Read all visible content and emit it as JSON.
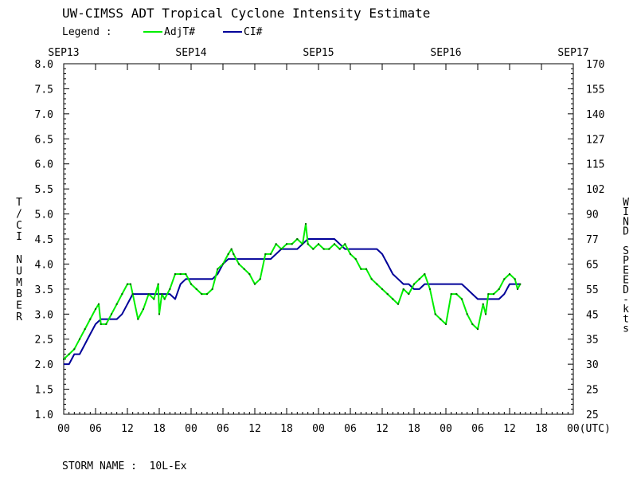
{
  "chart_data": {
    "type": "line",
    "title": "UW-CIMSS ADT Tropical Cyclone Intensity Estimate",
    "legend": {
      "label": "Legend :",
      "entries": [
        {
          "name": "AdjT#",
          "color": "#00ee00"
        },
        {
          "name": "CI#",
          "color": "#000099"
        }
      ]
    },
    "ylabel_left": "T/CI NUMBER",
    "ylabel_right": "WIND SPEED-kts",
    "ylim": [
      1.0,
      8.0
    ],
    "left_ticks": [
      "8.0",
      "7.5",
      "7.0",
      "6.5",
      "6.0",
      "5.5",
      "5.0",
      "4.5",
      "4.0",
      "3.5",
      "3.0",
      "2.5",
      "2.0",
      "1.5",
      "1.0"
    ],
    "right_ticks": [
      "170",
      "155",
      "140",
      "127",
      "115",
      "102",
      "90",
      "77",
      "65",
      "55",
      "45",
      "35",
      "30",
      "25",
      "25"
    ],
    "top_dates": [
      "SEP13",
      "SEP14",
      "SEP15",
      "SEP16",
      "SEP17"
    ],
    "bottom_hours": [
      "00",
      "06",
      "12",
      "18",
      "00",
      "06",
      "12",
      "18",
      "00",
      "06",
      "12",
      "18",
      "00",
      "06",
      "12",
      "18",
      "00(UTC)"
    ],
    "xlim_hours": [
      0,
      96
    ],
    "series": [
      {
        "name": "AdjT#",
        "color": "#00ee00",
        "points": [
          [
            0,
            2.1
          ],
          [
            1,
            2.2
          ],
          [
            2,
            2.3
          ],
          [
            3,
            2.5
          ],
          [
            4,
            2.7
          ],
          [
            5,
            2.9
          ],
          [
            6,
            3.1
          ],
          [
            6.6,
            3.2
          ],
          [
            7,
            2.8
          ],
          [
            8,
            2.8
          ],
          [
            9,
            3.0
          ],
          [
            10,
            3.2
          ],
          [
            11,
            3.4
          ],
          [
            12,
            3.6
          ],
          [
            12.6,
            3.6
          ],
          [
            13,
            3.4
          ],
          [
            14,
            2.9
          ],
          [
            15,
            3.1
          ],
          [
            16,
            3.4
          ],
          [
            17,
            3.3
          ],
          [
            17.8,
            3.6
          ],
          [
            18,
            3.0
          ],
          [
            18.5,
            3.4
          ],
          [
            19,
            3.3
          ],
          [
            20,
            3.5
          ],
          [
            21,
            3.8
          ],
          [
            22,
            3.8
          ],
          [
            23,
            3.8
          ],
          [
            24,
            3.6
          ],
          [
            25,
            3.5
          ],
          [
            26,
            3.4
          ],
          [
            27,
            3.4
          ],
          [
            28,
            3.5
          ],
          [
            29,
            3.9
          ],
          [
            30,
            4.0
          ],
          [
            31,
            4.2
          ],
          [
            31.6,
            4.3
          ],
          [
            32,
            4.2
          ],
          [
            33,
            4.0
          ],
          [
            34,
            3.9
          ],
          [
            35,
            3.8
          ],
          [
            36,
            3.6
          ],
          [
            37,
            3.7
          ],
          [
            38,
            4.2
          ],
          [
            39,
            4.2
          ],
          [
            40,
            4.4
          ],
          [
            41,
            4.3
          ],
          [
            42,
            4.4
          ],
          [
            43,
            4.4
          ],
          [
            44,
            4.5
          ],
          [
            45,
            4.4
          ],
          [
            45.6,
            4.8
          ],
          [
            46,
            4.4
          ],
          [
            47,
            4.3
          ],
          [
            48,
            4.4
          ],
          [
            49,
            4.3
          ],
          [
            50,
            4.3
          ],
          [
            51,
            4.4
          ],
          [
            52,
            4.3
          ],
          [
            53,
            4.4
          ],
          [
            54,
            4.2
          ],
          [
            55,
            4.1
          ],
          [
            56,
            3.9
          ],
          [
            57,
            3.9
          ],
          [
            58,
            3.7
          ],
          [
            59,
            3.6
          ],
          [
            60,
            3.5
          ],
          [
            61,
            3.4
          ],
          [
            62,
            3.3
          ],
          [
            63,
            3.2
          ],
          [
            64,
            3.5
          ],
          [
            65,
            3.4
          ],
          [
            66,
            3.6
          ],
          [
            67,
            3.7
          ],
          [
            68,
            3.8
          ],
          [
            69,
            3.5
          ],
          [
            70,
            3.0
          ],
          [
            71,
            2.9
          ],
          [
            72,
            2.8
          ],
          [
            73,
            3.4
          ],
          [
            74,
            3.4
          ],
          [
            75,
            3.3
          ],
          [
            76,
            3.0
          ],
          [
            77,
            2.8
          ],
          [
            78,
            2.7
          ],
          [
            79,
            3.2
          ],
          [
            79.5,
            3.0
          ],
          [
            80,
            3.4
          ],
          [
            81,
            3.4
          ],
          [
            82,
            3.5
          ],
          [
            83,
            3.7
          ],
          [
            84,
            3.8
          ],
          [
            85,
            3.7
          ],
          [
            85.5,
            3.5
          ],
          [
            86,
            3.6
          ]
        ]
      },
      {
        "name": "CI#",
        "color": "#000099",
        "points": [
          [
            0,
            2.0
          ],
          [
            1,
            2.0
          ],
          [
            2,
            2.2
          ],
          [
            3,
            2.2
          ],
          [
            4,
            2.4
          ],
          [
            5,
            2.6
          ],
          [
            6,
            2.8
          ],
          [
            7,
            2.9
          ],
          [
            8,
            2.9
          ],
          [
            9,
            2.9
          ],
          [
            10,
            2.9
          ],
          [
            11,
            3.0
          ],
          [
            12,
            3.2
          ],
          [
            13,
            3.4
          ],
          [
            14,
            3.4
          ],
          [
            15,
            3.4
          ],
          [
            16,
            3.4
          ],
          [
            17,
            3.4
          ],
          [
            18,
            3.4
          ],
          [
            19,
            3.4
          ],
          [
            20,
            3.4
          ],
          [
            21,
            3.3
          ],
          [
            22,
            3.6
          ],
          [
            23,
            3.7
          ],
          [
            24,
            3.7
          ],
          [
            25,
            3.7
          ],
          [
            26,
            3.7
          ],
          [
            27,
            3.7
          ],
          [
            28,
            3.7
          ],
          [
            29,
            3.8
          ],
          [
            30,
            4.0
          ],
          [
            31,
            4.1
          ],
          [
            32,
            4.1
          ],
          [
            33,
            4.1
          ],
          [
            34,
            4.1
          ],
          [
            35,
            4.1
          ],
          [
            36,
            4.1
          ],
          [
            37,
            4.1
          ],
          [
            38,
            4.1
          ],
          [
            39,
            4.1
          ],
          [
            40,
            4.2
          ],
          [
            41,
            4.3
          ],
          [
            42,
            4.3
          ],
          [
            43,
            4.3
          ],
          [
            44,
            4.3
          ],
          [
            45,
            4.4
          ],
          [
            46,
            4.5
          ],
          [
            47,
            4.5
          ],
          [
            48,
            4.5
          ],
          [
            49,
            4.5
          ],
          [
            50,
            4.5
          ],
          [
            51,
            4.5
          ],
          [
            52,
            4.4
          ],
          [
            53,
            4.3
          ],
          [
            54,
            4.3
          ],
          [
            55,
            4.3
          ],
          [
            56,
            4.3
          ],
          [
            57,
            4.3
          ],
          [
            58,
            4.3
          ],
          [
            59,
            4.3
          ],
          [
            60,
            4.2
          ],
          [
            61,
            4.0
          ],
          [
            62,
            3.8
          ],
          [
            63,
            3.7
          ],
          [
            64,
            3.6
          ],
          [
            65,
            3.6
          ],
          [
            66,
            3.5
          ],
          [
            67,
            3.5
          ],
          [
            68,
            3.6
          ],
          [
            69,
            3.6
          ],
          [
            70,
            3.6
          ],
          [
            71,
            3.6
          ],
          [
            72,
            3.6
          ],
          [
            73,
            3.6
          ],
          [
            74,
            3.6
          ],
          [
            75,
            3.6
          ],
          [
            76,
            3.5
          ],
          [
            77,
            3.4
          ],
          [
            78,
            3.3
          ],
          [
            79,
            3.3
          ],
          [
            80,
            3.3
          ],
          [
            81,
            3.3
          ],
          [
            82,
            3.3
          ],
          [
            83,
            3.4
          ],
          [
            84,
            3.6
          ],
          [
            85,
            3.6
          ],
          [
            86,
            3.6
          ]
        ]
      }
    ]
  },
  "footer": {
    "storm_name": "STORM NAME :  10L-Ex"
  }
}
